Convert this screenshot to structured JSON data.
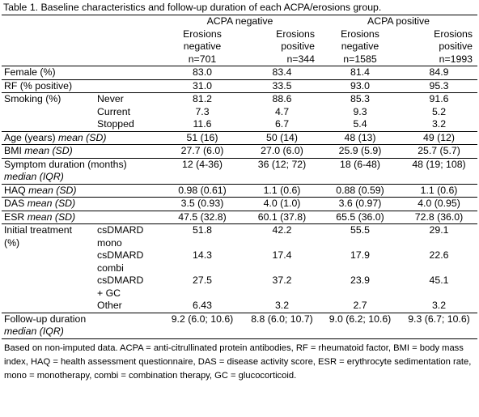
{
  "caption": "Table 1. Baseline characteristics and follow-up duration of each ACPA/erosions group.",
  "header": {
    "acpa_neg": "ACPA negative",
    "acpa_pos": "ACPA positive",
    "cols": [
      {
        "l1": "Erosions",
        "l2": "negative",
        "n": "n=701"
      },
      {
        "l1": "Erosions",
        "l2": "positive",
        "n": "n=344"
      },
      {
        "l1": "Erosions",
        "l2": "negative",
        "n": "n=1585"
      },
      {
        "l1": "Erosions",
        "l2": "positive",
        "n": "n=1993"
      }
    ]
  },
  "rows": {
    "female": {
      "label": "Female (%)",
      "v": [
        "83.0",
        "83.4",
        "81.4",
        "84.9"
      ]
    },
    "rf": {
      "label": "RF (% positive)",
      "v": [
        "31.0",
        "33.5",
        "93.0",
        "95.3"
      ]
    },
    "smoking_label": "Smoking (%)",
    "smoking": [
      {
        "sub": "Never",
        "v": [
          "81.2",
          "88.6",
          "85.3",
          "91.6"
        ]
      },
      {
        "sub": "Current",
        "v": [
          "7.3",
          "4.7",
          "9.3",
          "5.2"
        ]
      },
      {
        "sub": "Stopped",
        "v": [
          "11.6",
          "6.7",
          "5.4",
          "3.2"
        ]
      }
    ],
    "age": {
      "label": "Age (years) ",
      "label_em": "mean (SD)",
      "v": [
        "51 (16)",
        "50 (14)",
        "48 (13)",
        "49 (12)"
      ]
    },
    "bmi": {
      "label": "BMI ",
      "label_em": "mean (SD)",
      "v": [
        "27.7 (6.0)",
        "27.0 (6.0)",
        "25.9 (5.9)",
        "25.7 (5.7)"
      ]
    },
    "symptom": {
      "label": "Symptom duration (months)",
      "label2_em": "median (IQR)",
      "v": [
        "12 (4-36)",
        "36 (12; 72)",
        "18 (6-48)",
        "48 (19; 108)"
      ]
    },
    "haq": {
      "label": "HAQ ",
      "label_em": "mean (SD)",
      "v": [
        "0.98 (0.61)",
        "1.1 (0.6)",
        "0.88 (0.59)",
        "1.1 (0.6)"
      ]
    },
    "das": {
      "label": "DAS ",
      "label_em": "mean (SD)",
      "v": [
        "3.5 (0.93)",
        "4.0 (1.0)",
        "3.6 (0.97)",
        "4.0 (0.95)"
      ]
    },
    "esr": {
      "label": "ESR ",
      "label_em": "mean (SD)",
      "v": [
        "47.5 (32.8)",
        "60.1 (37.8)",
        "65.5 (36.0)",
        "72.8 (36.0)"
      ]
    },
    "treat_label1": "Initial treatment",
    "treat_label2": "(%)",
    "treatment": [
      {
        "sub1": "csDMARD",
        "sub2": "mono",
        "v": [
          "51.8",
          "42.2",
          "55.5",
          "29.1"
        ]
      },
      {
        "sub1": "csDMARD",
        "sub2": "combi",
        "v": [
          "14.3",
          "17.4",
          "17.9",
          "22.6"
        ]
      },
      {
        "sub1": "csDMARD",
        "sub2": "+ GC",
        "v": [
          "27.5",
          "37.2",
          "23.9",
          "45.1"
        ]
      },
      {
        "sub1": "Other",
        "sub2": "",
        "v": [
          "6.43",
          "3.2",
          "2.7",
          "3.2"
        ]
      }
    ],
    "followup": {
      "label": "Follow-up duration",
      "label2_em": "median (IQR)",
      "v": [
        "9.2 (6.0; 10.6)",
        "8.8 (6.0; 10.7)",
        "9.0 (6.2; 10.6)",
        "9.3 (6.7; 10.6)"
      ]
    }
  },
  "footnote": "Based on non-imputed data. ACPA = anti-citrullinated protein antibodies, RF = rheumatoid factor, BMI = body mass index, HAQ = health assessment questionnaire, DAS = disease activity score, ESR = erythrocyte sedimentation rate, mono = monotherapy, combi = combination therapy, GC = glucocorticoid."
}
